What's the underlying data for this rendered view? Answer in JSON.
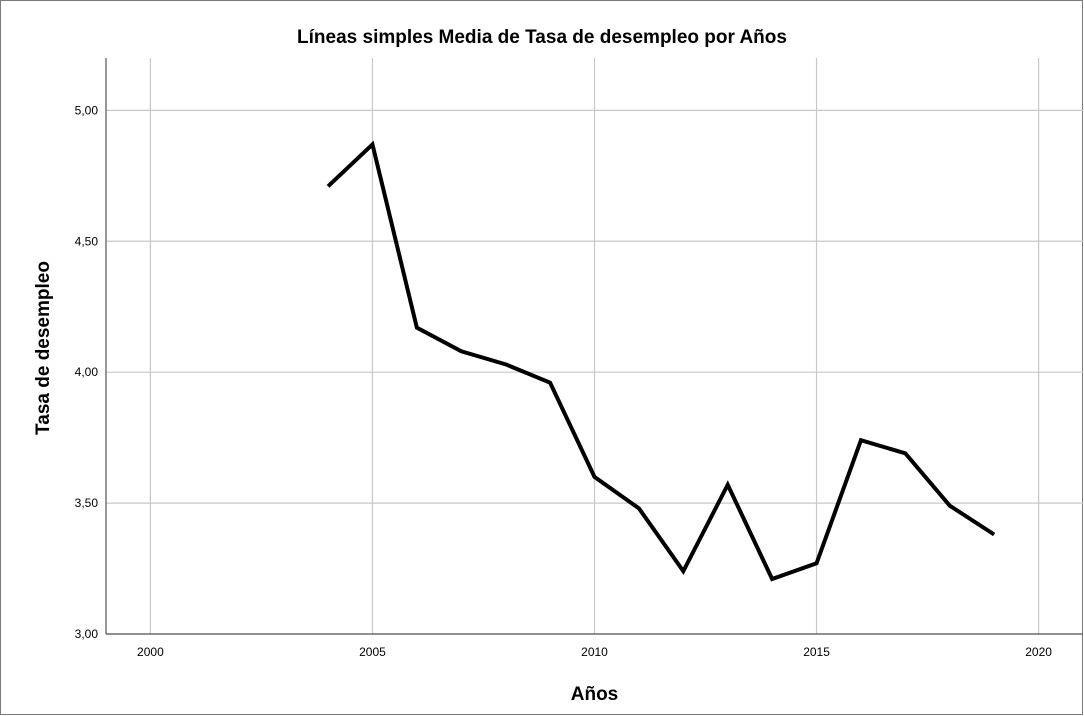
{
  "chart_data": {
    "type": "line",
    "title": "Líneas simples Media de Tasa de desempleo por Años",
    "xlabel": "Años",
    "ylabel": "Tasa de desempleo",
    "xlim": [
      1999,
      2021
    ],
    "ylim": [
      3.0,
      5.2
    ],
    "x_ticks": [
      2000,
      2005,
      2010,
      2015,
      2020
    ],
    "y_ticks": [
      3.0,
      3.5,
      4.0,
      4.5,
      5.0
    ],
    "x_tick_labels": [
      "2000",
      "2005",
      "2010",
      "2015",
      "2020"
    ],
    "y_tick_labels": [
      "3,00",
      "3,50",
      "4,00",
      "4,50",
      "5,00"
    ],
    "grid": true,
    "legend": "none",
    "line_color": "#000000",
    "grid_color": "#c8c8c8",
    "series": [
      {
        "x": [
          2004,
          2005,
          2006,
          2007,
          2008,
          2009,
          2010,
          2011,
          2012,
          2013,
          2014,
          2015,
          2016,
          2017,
          2018,
          2019
        ],
        "values": [
          4.71,
          4.87,
          4.17,
          4.08,
          4.03,
          3.96,
          3.6,
          3.48,
          3.24,
          3.57,
          3.21,
          3.27,
          3.74,
          3.69,
          3.49,
          3.38
        ]
      }
    ]
  }
}
